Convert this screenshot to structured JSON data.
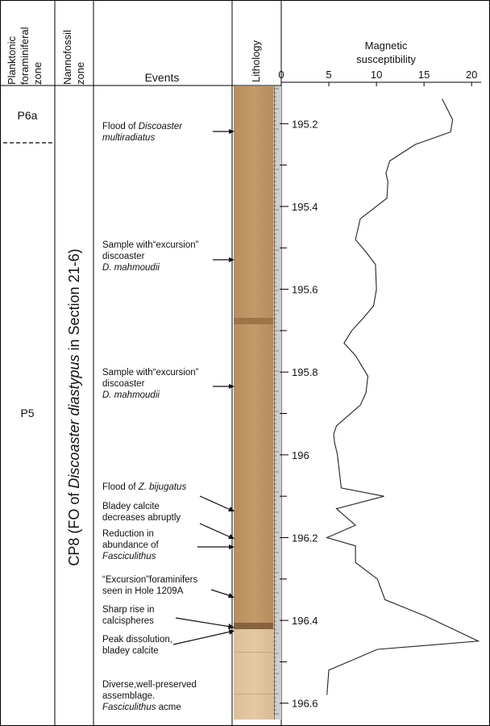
{
  "headers": {
    "planktonic": [
      "Planktonic",
      "foraminiferal",
      "zone"
    ],
    "nannofossil": [
      "Nannofossil",
      "zone"
    ],
    "events": "Events",
    "lithology": "Lithology",
    "magnetic": [
      "Magnetic",
      "susceptibility"
    ]
  },
  "planktonic_zones": {
    "upper": "P6a",
    "lower": "P5"
  },
  "nannofossil_zone": {
    "prefix": "CP8 (FO of ",
    "species": "Discoaster diastypus",
    "suffix": " in Section 21-6)"
  },
  "events": [
    {
      "id": "flood-multiradiatus",
      "depth": 195.24,
      "lines": [
        [
          [
            "Flood of ",
            false
          ],
          [
            "Discoaster",
            true
          ]
        ],
        [
          [
            "multiradiatus",
            true
          ]
        ]
      ]
    },
    {
      "id": "excursion-discoaster-1",
      "depth": 195.53,
      "lines": [
        [
          [
            "Sample with“excursion”",
            false
          ]
        ],
        [
          [
            "discoaster",
            false
          ]
        ],
        [
          [
            "D. mahmoudii",
            true
          ]
        ]
      ]
    },
    {
      "id": "excursion-discoaster-2",
      "depth": 195.83,
      "lines": [
        [
          [
            "Sample with“excursion”",
            false
          ]
        ],
        [
          [
            "discoaster",
            false
          ]
        ],
        [
          [
            "D. mahmoudii",
            true
          ]
        ]
      ]
    },
    {
      "id": "flood-bijugatus",
      "depth": 196.12,
      "lines": [
        [
          [
            "Flood of ",
            false
          ],
          [
            "Z. bijugatus",
            true
          ]
        ]
      ]
    },
    {
      "id": "bladey-calcite",
      "depth": 196.2,
      "lines": [
        [
          [
            "Bladey calcite",
            false
          ]
        ],
        [
          [
            "decreases abruptly",
            false
          ]
        ]
      ]
    },
    {
      "id": "reduction-fasciculithus",
      "depth": 196.22,
      "lines": [
        [
          [
            "Reduction in",
            false
          ]
        ],
        [
          [
            "abundance of",
            false
          ]
        ],
        [
          [
            "Fasciculithus",
            true
          ]
        ]
      ]
    },
    {
      "id": "excursion-foraminifers",
      "depth": 196.33,
      "lines": [
        [
          [
            "“Excursion”foraminifers",
            false
          ]
        ],
        [
          [
            "seen in Hole 1209A",
            false
          ]
        ]
      ]
    },
    {
      "id": "calcispheres-rise",
      "depth": 196.42,
      "lines": [
        [
          [
            "Sharp rise in",
            false
          ]
        ],
        [
          [
            "calcispheres",
            false
          ]
        ]
      ]
    },
    {
      "id": "peak-dissolution",
      "depth": 196.43,
      "lines": [
        [
          [
            "Peak dissolution,",
            false
          ]
        ],
        [
          [
            "bladey calcite",
            false
          ]
        ]
      ]
    },
    {
      "id": "diverse-assemblage",
      "depth": null,
      "lines": [
        [
          [
            "Diverse,well-preserved",
            false
          ]
        ],
        [
          [
            "assemblage.",
            false
          ]
        ],
        [
          [
            "Fasciculithus",
            true
          ],
          [
            " acme",
            false
          ]
        ]
      ]
    }
  ],
  "chart_data": {
    "type": "line",
    "title": "Magnetic susceptibility",
    "xlim": [
      0,
      21
    ],
    "xticks": [
      "0",
      "5",
      "10",
      "15",
      "20"
    ],
    "xtick_values": [
      0,
      5,
      10,
      15,
      20
    ],
    "ylim": [
      195.1,
      196.62
    ],
    "yticks": [
      "195.2",
      "195.4",
      "195.6",
      "195.8",
      "196",
      "196.2",
      "196.4",
      "196.6"
    ],
    "ytick_values": [
      195.2,
      195.4,
      195.6,
      195.8,
      196.0,
      196.2,
      196.4,
      196.6
    ],
    "series": [
      {
        "x": [
          16.9,
          18.0,
          17.8,
          14.1,
          11.4,
          11.0,
          11.2,
          11.1,
          8.3,
          7.8,
          8.9,
          9.9,
          10.0,
          9.7,
          8.6,
          7.4,
          6.6,
          7.8,
          9.1,
          8.9,
          8.3,
          5.8,
          5.5,
          5.6,
          5.9,
          6.3,
          10.8,
          5.8,
          7.8,
          4.8,
          7.8,
          7.8,
          10.1,
          10.9,
          15.2,
          20.7,
          10.1,
          5.0,
          4.8
        ],
        "y": [
          195.14,
          195.19,
          195.22,
          195.25,
          195.29,
          195.32,
          195.34,
          195.38,
          195.43,
          195.48,
          195.51,
          195.54,
          195.6,
          195.64,
          195.67,
          195.7,
          195.73,
          195.76,
          195.81,
          195.85,
          195.88,
          195.93,
          195.95,
          195.97,
          196.0,
          196.08,
          196.1,
          196.13,
          196.17,
          196.2,
          196.22,
          196.26,
          196.3,
          196.35,
          196.39,
          196.45,
          196.47,
          196.52,
          196.58
        ]
      }
    ]
  }
}
